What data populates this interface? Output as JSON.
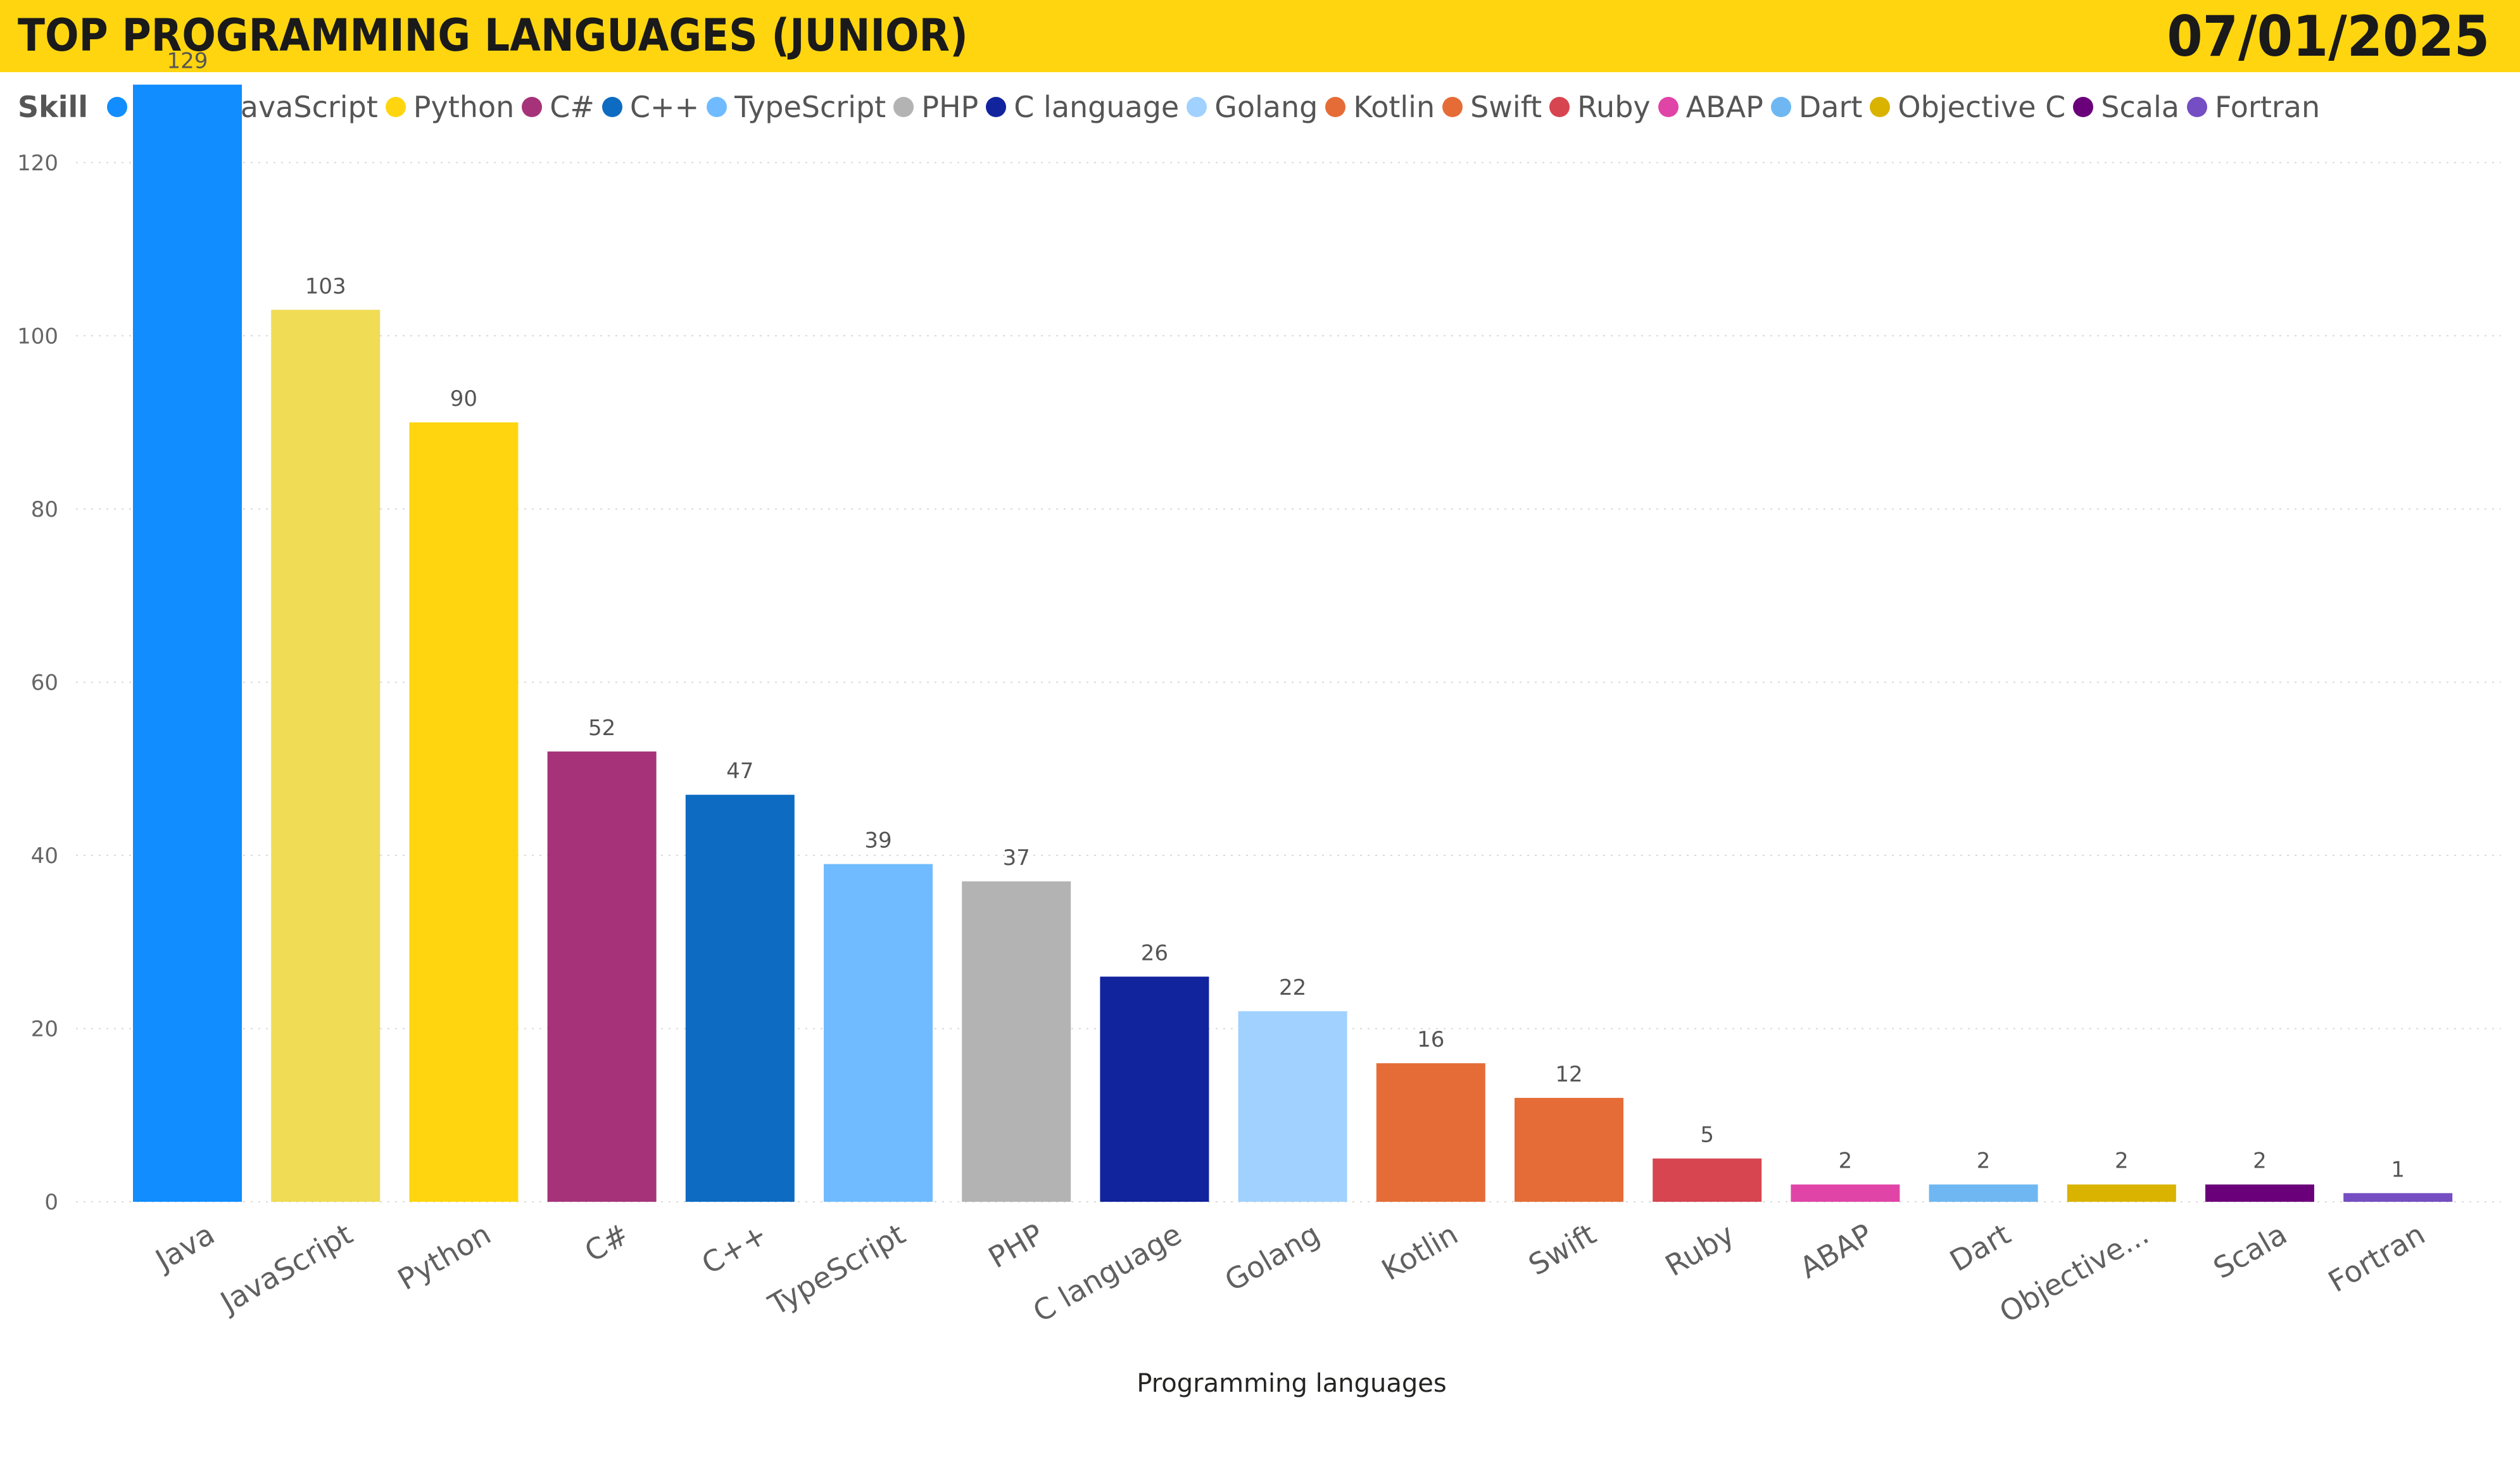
{
  "header": {
    "title": "TOP PROGRAMMING LANGUAGES (JUNIOR)",
    "date": "07/01/2025",
    "background_color": "#FFD50F"
  },
  "legend": {
    "title": "Skill"
  },
  "chart_data": {
    "type": "bar",
    "xlabel": "Programming languages",
    "ylabel": "",
    "ylim": [
      0,
      130
    ],
    "yticks": [
      0,
      20,
      40,
      60,
      80,
      100,
      120
    ],
    "grid": true,
    "legend_position": "top-left",
    "categories": [
      "Java",
      "JavaScript",
      "Python",
      "C#",
      "C++",
      "TypeScript",
      "PHP",
      "C language",
      "Golang",
      "Kotlin",
      "Swift",
      "Ruby",
      "ABAP",
      "Dart",
      "Objective C",
      "Scala",
      "Fortran"
    ],
    "category_tick_labels": [
      "Java",
      "JavaScript",
      "Python",
      "C#",
      "C++",
      "TypeScript",
      "PHP",
      "C language",
      "Golang",
      "Kotlin",
      "Swift",
      "Ruby",
      "ABAP",
      "Dart",
      "Objective...",
      "Scala",
      "Fortran"
    ],
    "values": [
      129,
      103,
      90,
      52,
      47,
      39,
      37,
      26,
      22,
      16,
      12,
      5,
      2,
      2,
      2,
      2,
      1
    ],
    "colors": [
      "#118DFF",
      "#F0DC55",
      "#FFD50F",
      "#A6337A",
      "#0E6BC2",
      "#70BBFF",
      "#B3B3B3",
      "#12239E",
      "#A0D1FF",
      "#E66C37",
      "#E66C37",
      "#D64550",
      "#E044A7",
      "#6FB7F2",
      "#D9B300",
      "#6B007B",
      "#744EC2"
    ]
  }
}
